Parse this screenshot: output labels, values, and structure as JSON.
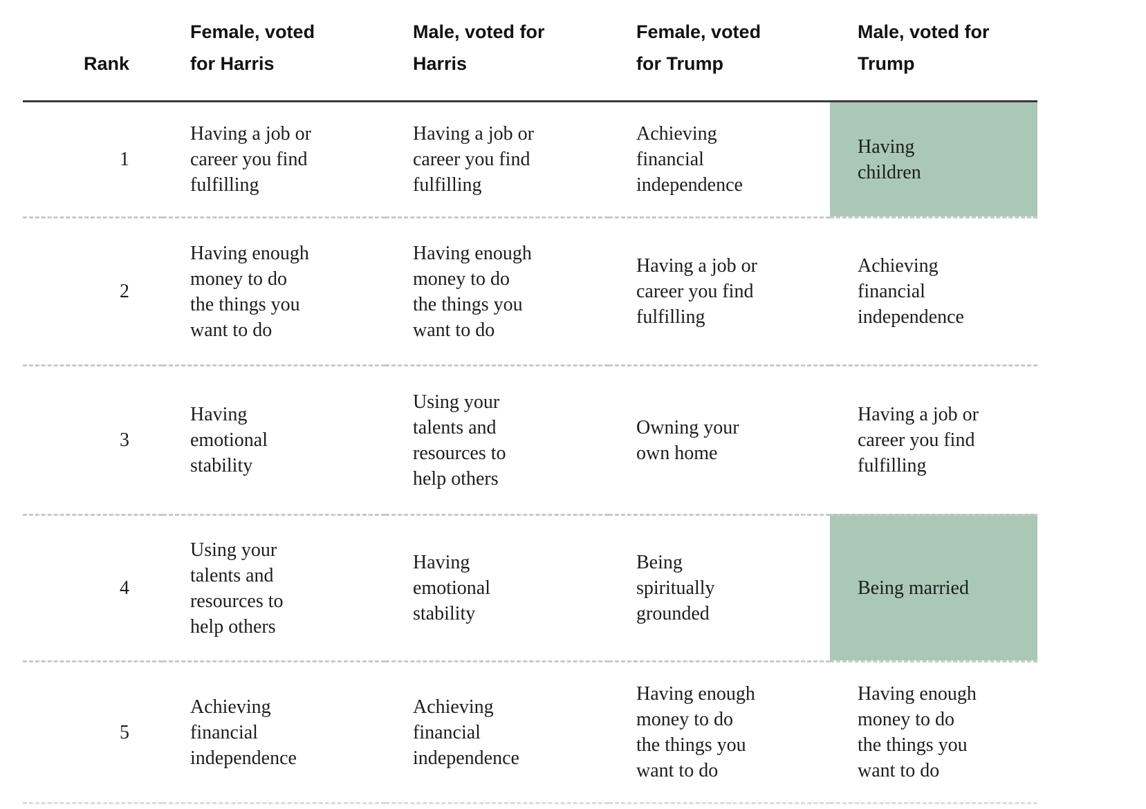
{
  "colors": {
    "highlight": "#aac8b6",
    "header_rule": "#3a3a3a",
    "row_divider": "#c9c9c9",
    "text": "#1d1d1d"
  },
  "table": {
    "columns": [
      {
        "id": "rank",
        "label": "Rank"
      },
      {
        "id": "female-harris",
        "label": "Female, voted\nfor Harris"
      },
      {
        "id": "male-harris",
        "label": "Male, voted for\nHarris"
      },
      {
        "id": "female-trump",
        "label": "Female, voted\nfor Trump"
      },
      {
        "id": "male-trump",
        "label": "Male, voted for\nTrump"
      }
    ],
    "rows": [
      {
        "rank": "1",
        "cells": [
          {
            "text": "Having a job or\ncareer you find\nfulfilling",
            "highlight": false
          },
          {
            "text": "Having a job or\ncareer you find\nfulfilling",
            "highlight": false
          },
          {
            "text": "Achieving\nfinancial\nindependence",
            "highlight": false
          },
          {
            "text": "Having\nchildren",
            "highlight": true
          }
        ]
      },
      {
        "rank": "2",
        "cells": [
          {
            "text": "Having enough\nmoney to do\nthe things you\nwant to do",
            "highlight": false
          },
          {
            "text": "Having enough\nmoney to do\nthe things you\nwant to do",
            "highlight": false
          },
          {
            "text": "Having a job or\ncareer you find\nfulfilling",
            "highlight": false
          },
          {
            "text": "Achieving\nfinancial\nindependence",
            "highlight": false
          }
        ]
      },
      {
        "rank": "3",
        "cells": [
          {
            "text": "Having\nemotional\nstability",
            "highlight": false
          },
          {
            "text": "Using your\ntalents and\nresources to\nhelp others",
            "highlight": false
          },
          {
            "text": "Owning your\nown home",
            "highlight": false
          },
          {
            "text": "Having a job or\ncareer you find\nfulfilling",
            "highlight": false
          }
        ]
      },
      {
        "rank": "4",
        "cells": [
          {
            "text": "Using your\ntalents and\nresources to\nhelp others",
            "highlight": false
          },
          {
            "text": "Having\nemotional\nstability",
            "highlight": false
          },
          {
            "text": "Being\nspiritually\ngrounded",
            "highlight": false
          },
          {
            "text": "Being married",
            "highlight": true
          }
        ]
      },
      {
        "rank": "5",
        "cells": [
          {
            "text": "Achieving\nfinancial\nindependence",
            "highlight": false
          },
          {
            "text": "Achieving\nfinancial\nindependence",
            "highlight": false
          },
          {
            "text": "Having enough\nmoney to do\nthe things you\nwant to do",
            "highlight": false
          },
          {
            "text": "Having enough\nmoney to do\nthe things you\nwant to do",
            "highlight": false
          }
        ]
      }
    ]
  },
  "chart_data": {
    "type": "table",
    "columns": [
      "Rank",
      "Female, voted for Harris",
      "Male, voted for Harris",
      "Female, voted for Trump",
      "Male, voted for Trump"
    ],
    "rows": [
      [
        "1",
        "Having a job or career you find fulfilling",
        "Having a job or career you find fulfilling",
        "Achieving financial independence",
        "Having children"
      ],
      [
        "2",
        "Having enough money to do the things you want to do",
        "Having enough money to do the things you want to do",
        "Having a job or career you find fulfilling",
        "Achieving financial independence"
      ],
      [
        "3",
        "Having emotional stability",
        "Using your talents and resources to help others",
        "Owning your own home",
        "Having a job or career you find fulfilling"
      ],
      [
        "4",
        "Using your talents and resources to help others",
        "Having emotional stability",
        "Being spiritually grounded",
        "Being married"
      ],
      [
        "5",
        "Achieving financial independence",
        "Achieving financial independence",
        "Having enough money to do the things you want to do",
        "Having enough money to do the things you want to do"
      ]
    ],
    "highlighted_cells": [
      {
        "rank": "1",
        "column": "Male, voted for Trump",
        "text": "Having children"
      },
      {
        "rank": "4",
        "column": "Male, voted for Trump",
        "text": "Being married"
      }
    ],
    "highlight_color": "#aac8b6",
    "legend_position": "none",
    "grid": "dashed row dividers, solid header rule"
  }
}
